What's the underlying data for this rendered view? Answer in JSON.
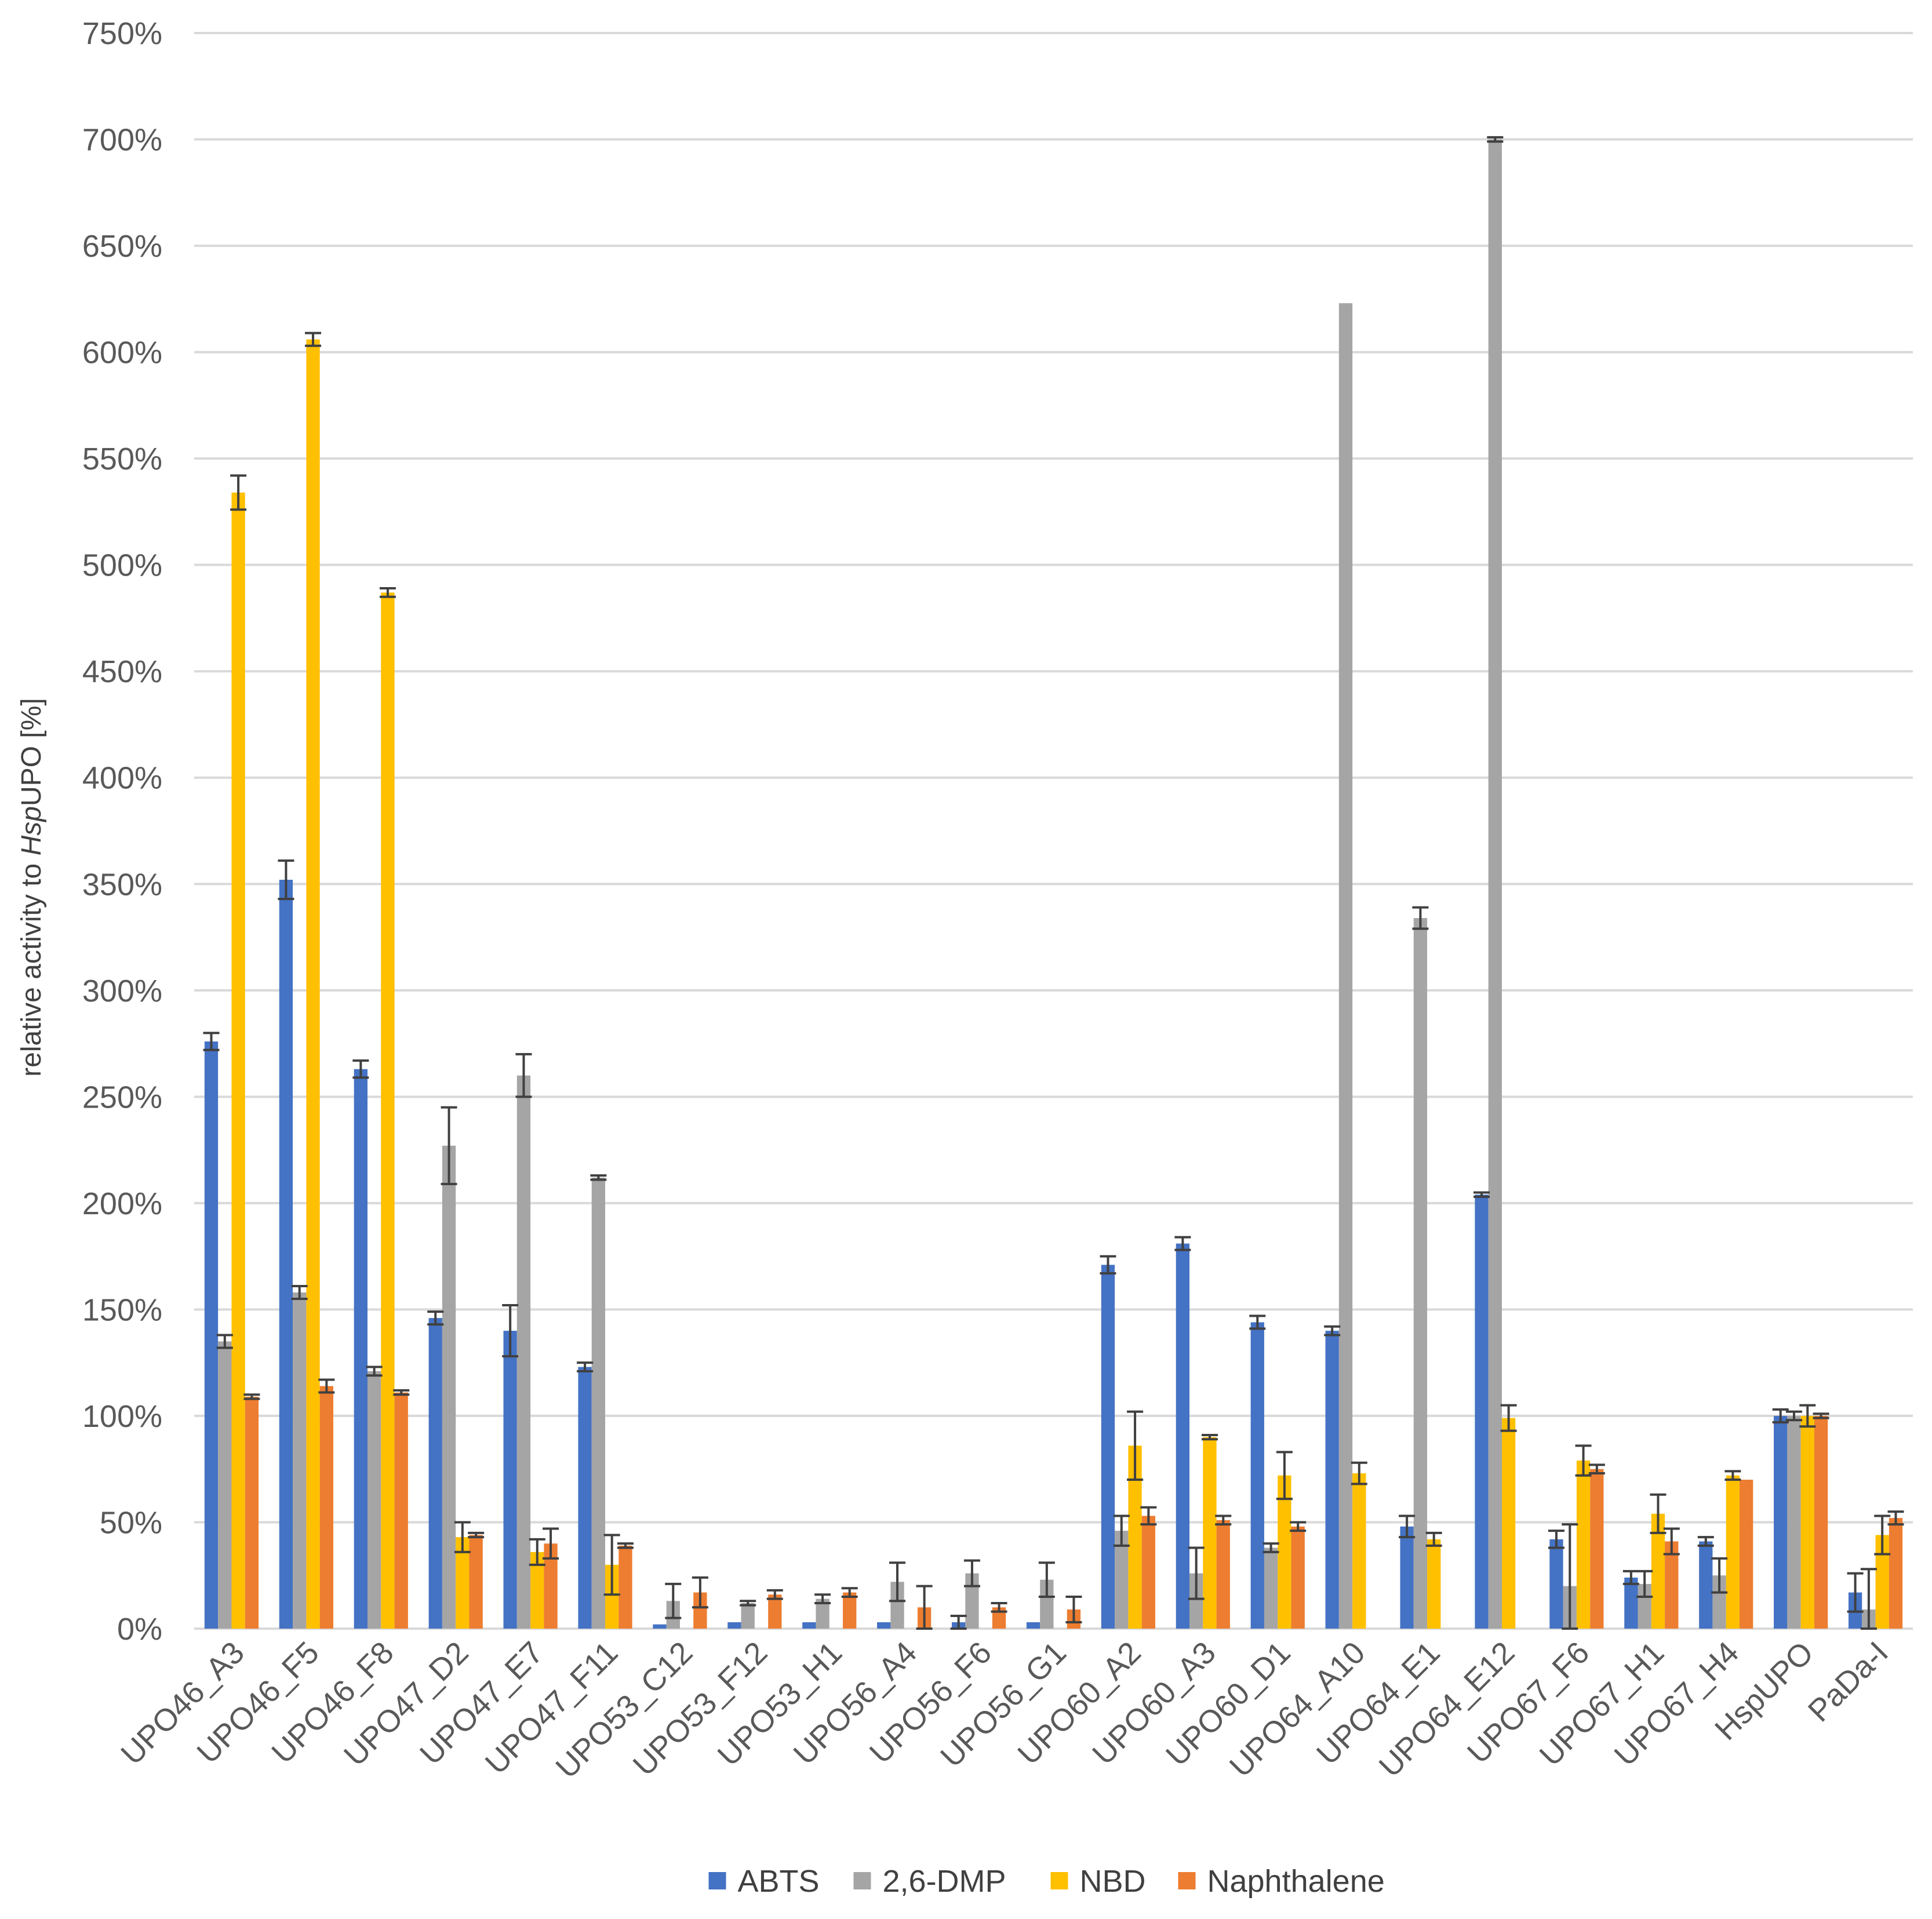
{
  "chart_data": {
    "type": "bar",
    "title": "",
    "xlabel": "",
    "ylabel_prefix": "relative activity to ",
    "ylabel_italic": "Hsp",
    "ylabel_suffix": "UPO [%]",
    "ylim": [
      0,
      7.5
    ],
    "y_tick_step": 0.5,
    "y_format": "percent",
    "grid": true,
    "legend_position": "bottom",
    "categories": [
      "UPO46_A3",
      "UPO46_F5",
      "UPO46_F8",
      "UPO47_D2",
      "UPO47_E7",
      "UPO47_F11",
      "UPO53_C12",
      "UPO53_F12",
      "UPO53_H1",
      "UPO56_A4",
      "UPO56_F6",
      "UPO56_G1",
      "UPO60_A2",
      "UPO60_A3",
      "UPO60_D1",
      "UPO64_A10",
      "UPO64_E1",
      "UPO64_E12",
      "UPO67_F6",
      "UPO67_H1",
      "UPO67_H4",
      "HspUPO",
      "PaDa-I"
    ],
    "series": [
      {
        "name": "ABTS",
        "color": "#4472C4",
        "values": [
          2.76,
          3.52,
          2.63,
          1.46,
          1.4,
          1.23,
          0.02,
          0.03,
          0.03,
          0.03,
          0.03,
          0.03,
          1.71,
          1.81,
          1.44,
          1.4,
          0.48,
          2.04,
          0.42,
          0.24,
          0.41,
          1.0,
          0.17
        ],
        "errors": [
          0.04,
          0.09,
          0.04,
          0.03,
          0.12,
          0.02,
          0,
          0,
          0,
          0,
          0.03,
          0,
          0.04,
          0.03,
          0.03,
          0.02,
          0.05,
          0.01,
          0.04,
          0.03,
          0.02,
          0.03,
          0.09
        ]
      },
      {
        "name": "2,6-DMP",
        "color": "#A5A5A5",
        "values": [
          1.35,
          1.58,
          1.21,
          2.27,
          2.6,
          2.12,
          0.13,
          0.12,
          0.14,
          0.22,
          0.26,
          0.23,
          0.46,
          0.26,
          0.38,
          6.23,
          3.34,
          7.0,
          0.2,
          0.21,
          0.25,
          1.0,
          0.09
        ],
        "errors": [
          0.03,
          0.03,
          0.02,
          0.18,
          0.1,
          0.01,
          0.08,
          0.01,
          0.02,
          0.09,
          0.06,
          0.08,
          0.07,
          0.12,
          0.02,
          0,
          0.05,
          0.01,
          0.29,
          0.06,
          0.08,
          0.02,
          0.19
        ]
      },
      {
        "name": "NBD",
        "color": "#FFC000",
        "values": [
          5.34,
          6.06,
          4.87,
          0.43,
          0.36,
          0.3,
          0,
          0,
          0,
          0,
          0,
          0,
          0.86,
          0.9,
          0.72,
          0.73,
          0.42,
          0.99,
          0.79,
          0.54,
          0.72,
          1.0,
          0.44
        ],
        "errors": [
          0.08,
          0.03,
          0.02,
          0.07,
          0.06,
          0.14,
          0,
          0,
          0,
          0,
          0,
          0,
          0.16,
          0.01,
          0.11,
          0.05,
          0.03,
          0.06,
          0.07,
          0.09,
          0.02,
          0.05,
          0.09
        ]
      },
      {
        "name": "Naphthalene",
        "color": "#ED7D31",
        "values": [
          1.09,
          1.14,
          1.11,
          0.44,
          0.4,
          0.39,
          0.17,
          0.16,
          0.17,
          0.1,
          0.1,
          0.09,
          0.53,
          0.51,
          0.48,
          0,
          0,
          0,
          0.75,
          0.41,
          0.7,
          1.0,
          0.52
        ],
        "errors": [
          0.01,
          0.03,
          0.01,
          0.01,
          0.07,
          0.01,
          0.07,
          0.02,
          0.02,
          0.1,
          0.02,
          0.06,
          0.04,
          0.02,
          0.02,
          0,
          0,
          0,
          0.02,
          0.06,
          0,
          0.01,
          0.03
        ]
      }
    ]
  }
}
